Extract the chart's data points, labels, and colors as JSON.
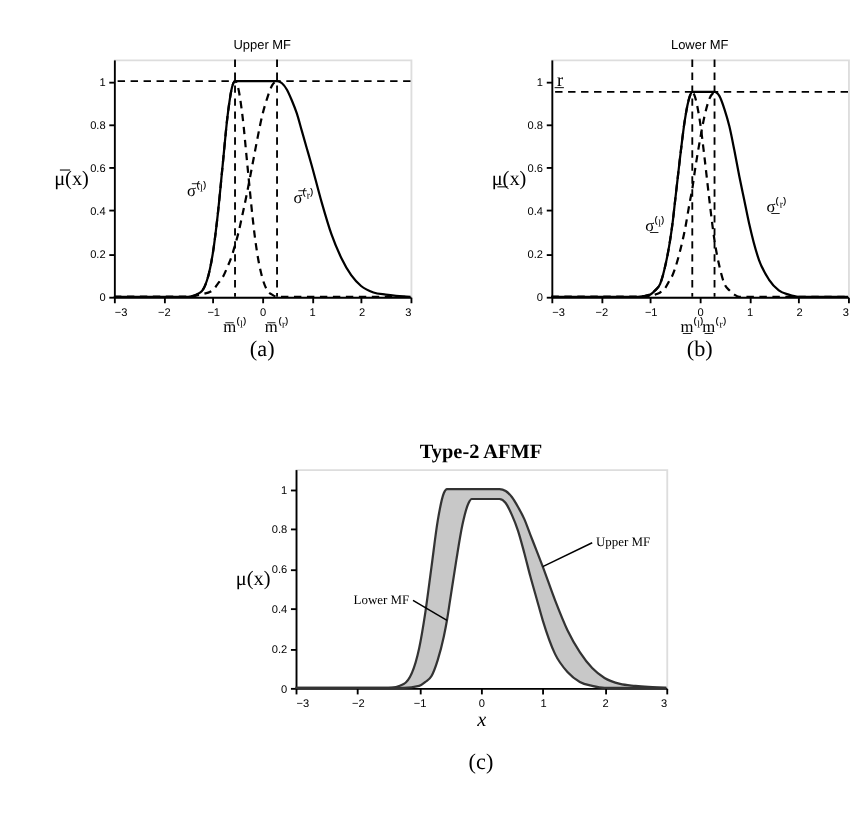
{
  "chart_data": [
    {
      "type": "line",
      "title": "Upper MF",
      "ylabel": "μ̅(x)",
      "xlim": [
        -3,
        3
      ],
      "ylim": [
        0,
        1.1
      ],
      "xticks": [
        -3,
        -2,
        -1,
        0,
        1,
        2,
        3
      ],
      "yticks": [
        0,
        0.2,
        0.4,
        0.6,
        0.8,
        1
      ],
      "grid": false,
      "x": [
        -3,
        -2.5,
        -2,
        -1.5,
        -1.25,
        -1,
        -0.9,
        -0.8,
        -0.7,
        -0.6,
        -0.55,
        -0.5,
        -0.4,
        -0.3,
        -0.2,
        -0.15,
        -0.1,
        0,
        0.1,
        0.2,
        0.3,
        0.4,
        0.5,
        0.6,
        0.7,
        0.8,
        0.9,
        1,
        1.2,
        1.4,
        1.6,
        1.8,
        2,
        2.25,
        2.5,
        3
      ],
      "series": [
        {
          "color": "#000000",
          "values": [
            0,
            0,
            0,
            0,
            0.02,
            0.2,
            0.38,
            0.61,
            0.84,
            0.98,
            1,
            1,
            1,
            1,
            1,
            1,
            1,
            1,
            1,
            1,
            1,
            0.99,
            0.96,
            0.91,
            0.85,
            0.77,
            0.69,
            0.61,
            0.44,
            0.29,
            0.18,
            0.1,
            0.05,
            0.02,
            0.01,
            0
          ]
        },
        {
          "color": "#000000",
          "line_style": "dashed",
          "values": [
            0,
            0,
            0,
            0,
            0.02,
            0.2,
            0.38,
            0.61,
            0.84,
            0.98,
            1,
            0.98,
            0.84,
            0.61,
            0.38,
            0.28,
            0.2,
            0.09,
            0.03,
            0.01,
            0,
            0,
            0,
            0,
            0,
            0,
            0,
            0,
            0,
            0,
            0,
            0,
            0,
            0,
            0,
            0
          ]
        },
        {
          "color": "#000000",
          "line_style": "dashed",
          "x": [
            -3,
            -2.5,
            -2,
            -1.5,
            -1.25,
            -1,
            -0.9,
            -0.8,
            -0.7,
            -0.6,
            -0.55,
            -0.5,
            -0.4,
            -0.3,
            -0.2,
            -0.15,
            -0.1,
            0,
            0.1,
            0.2,
            0.3
          ],
          "values": [
            0,
            0,
            0,
            0,
            0.01,
            0.03,
            0.06,
            0.09,
            0.14,
            0.2,
            0.24,
            0.28,
            0.38,
            0.49,
            0.61,
            0.67,
            0.73,
            0.84,
            0.92,
            0.98,
            1
          ]
        }
      ],
      "ref_lines": [
        {
          "axis": "x",
          "value": -0.55,
          "line_style": "dashed"
        },
        {
          "axis": "x",
          "value": 0.3,
          "line_style": "dashed"
        },
        {
          "axis": "y",
          "value": 1,
          "line_style": "dashed"
        }
      ],
      "annotations": [
        {
          "text": "m̅⁽ˡ⁾",
          "x": -0.55,
          "y": 0
        },
        {
          "text": "m̅⁽ʳ⁾",
          "x": 0.3,
          "y": 0
        },
        "σ̅⁽ˡ⁾",
        "σ̅⁽ʳ⁾",
        "(a)"
      ]
    },
    {
      "type": "line",
      "title": "Lower MF",
      "ylabel": "μ̲(x)",
      "xlim": [
        -3,
        3
      ],
      "ylim": [
        0,
        1.1
      ],
      "xticks": [
        -3,
        -2,
        -1,
        0,
        1,
        2,
        3
      ],
      "yticks": [
        0,
        0.2,
        0.4,
        0.6,
        0.8,
        1
      ],
      "grid": false,
      "x": [
        -3,
        -2.5,
        -2,
        -1.5,
        -1.25,
        -1,
        -0.9,
        -0.8,
        -0.7,
        -0.6,
        -0.55,
        -0.5,
        -0.4,
        -0.3,
        -0.2,
        -0.15,
        -0.1,
        0,
        0.1,
        0.2,
        0.3,
        0.4,
        0.5,
        0.6,
        0.7,
        0.8,
        0.9,
        1,
        1.2,
        1.4,
        1.6,
        1.8,
        2,
        2.25,
        2.5,
        3
      ],
      "series": [
        {
          "color": "#000000",
          "values": [
            0,
            0,
            0,
            0,
            0,
            0.01,
            0.03,
            0.06,
            0.14,
            0.26,
            0.34,
            0.44,
            0.64,
            0.82,
            0.93,
            0.95,
            0.95,
            0.95,
            0.95,
            0.95,
            0.95,
            0.93,
            0.87,
            0.79,
            0.68,
            0.56,
            0.45,
            0.34,
            0.17,
            0.08,
            0.03,
            0.01,
            0,
            0,
            0,
            0
          ]
        },
        {
          "color": "#000000",
          "line_style": "dashed",
          "values": [
            0,
            0,
            0,
            0,
            0,
            0.01,
            0.03,
            0.06,
            0.14,
            0.26,
            0.34,
            0.44,
            0.64,
            0.82,
            0.93,
            0.95,
            0.93,
            0.82,
            0.64,
            0.44,
            0.26,
            0.14,
            0.06,
            0.03,
            0.01,
            0,
            0,
            0,
            0,
            0,
            0,
            0,
            0,
            0,
            0,
            0
          ]
        },
        {
          "color": "#000000",
          "line_style": "dashed",
          "x": [
            -3,
            -2.5,
            -2,
            -1.5,
            -1.25,
            -1,
            -0.9,
            -0.8,
            -0.7,
            -0.6,
            -0.55,
            -0.5,
            -0.4,
            -0.3,
            -0.2,
            -0.15,
            -0.1,
            0,
            0.1,
            0.2,
            0.3
          ],
          "values": [
            0,
            0,
            0,
            0,
            0,
            0,
            0.01,
            0.02,
            0.04,
            0.08,
            0.1,
            0.13,
            0.21,
            0.31,
            0.44,
            0.5,
            0.58,
            0.72,
            0.84,
            0.92,
            0.95
          ]
        }
      ],
      "ref_lines": [
        {
          "axis": "x",
          "value": -0.15,
          "line_style": "dashed"
        },
        {
          "axis": "x",
          "value": 0.3,
          "line_style": "dashed"
        },
        {
          "axis": "y",
          "value": 0.95,
          "label": "r̲",
          "line_style": "dashed"
        }
      ],
      "annotations": [
        {
          "text": "m̲⁽ˡ⁾",
          "x": -0.15,
          "y": 0
        },
        {
          "text": "m̲⁽ʳ⁾",
          "x": 0.3,
          "y": 0
        },
        "σ̲⁽ˡ⁾",
        "σ̲⁽ʳ⁾",
        "(b)"
      ]
    },
    {
      "type": "line",
      "title": "Type-2 AFMF",
      "xlabel": "x",
      "ylabel": "μ(x)",
      "xlim": [
        -3,
        3
      ],
      "ylim": [
        0,
        1.1
      ],
      "xticks": [
        -3,
        -2,
        -1,
        0,
        1,
        2,
        3
      ],
      "yticks": [
        0,
        0.2,
        0.4,
        0.6,
        0.8,
        1
      ],
      "grid": false,
      "x": [
        -3,
        -2.5,
        -2,
        -1.5,
        -1.25,
        -1,
        -0.9,
        -0.8,
        -0.7,
        -0.6,
        -0.55,
        -0.5,
        -0.4,
        -0.3,
        -0.2,
        -0.15,
        -0.1,
        0,
        0.1,
        0.2,
        0.3,
        0.4,
        0.5,
        0.6,
        0.7,
        0.8,
        0.9,
        1,
        1.2,
        1.4,
        1.6,
        1.8,
        2,
        2.25,
        2.5,
        3
      ],
      "series": [
        {
          "color": "#333333",
          "values": [
            0,
            0,
            0,
            0,
            0.02,
            0.2,
            0.38,
            0.61,
            0.84,
            0.98,
            1,
            1,
            1,
            1,
            1,
            1,
            1,
            1,
            1,
            1,
            1,
            0.99,
            0.96,
            0.91,
            0.85,
            0.77,
            0.69,
            0.61,
            0.44,
            0.29,
            0.18,
            0.1,
            0.05,
            0.02,
            0.01,
            0
          ],
          "upper": [
            0,
            0,
            0,
            0,
            0.02,
            0.2,
            0.38,
            0.61,
            0.84,
            0.98,
            1,
            1,
            1,
            1,
            1,
            1,
            1,
            1,
            1,
            1,
            1,
            0.99,
            0.96,
            0.91,
            0.85,
            0.77,
            0.69,
            0.61,
            0.44,
            0.29,
            0.18,
            0.1,
            0.05,
            0.02,
            0.01,
            0
          ],
          "lower": [
            0,
            0,
            0,
            0,
            0,
            0.01,
            0.03,
            0.06,
            0.14,
            0.26,
            0.34,
            0.44,
            0.64,
            0.82,
            0.93,
            0.95,
            0.95,
            0.95,
            0.95,
            0.95,
            0.95,
            0.93,
            0.87,
            0.79,
            0.68,
            0.56,
            0.45,
            0.34,
            0.17,
            0.08,
            0.03,
            0.01,
            0,
            0,
            0,
            0
          ]
        },
        {
          "color": "#333333",
          "values": [
            0,
            0,
            0,
            0,
            0,
            0.01,
            0.03,
            0.06,
            0.14,
            0.26,
            0.34,
            0.44,
            0.64,
            0.82,
            0.93,
            0.95,
            0.95,
            0.95,
            0.95,
            0.95,
            0.95,
            0.93,
            0.87,
            0.79,
            0.68,
            0.56,
            0.45,
            0.34,
            0.17,
            0.08,
            0.03,
            0.01,
            0,
            0,
            0,
            0
          ]
        }
      ],
      "annotations": [
        {
          "text": "Upper MF",
          "x": 1,
          "y": 0.61
        },
        {
          "text": "Lower MF",
          "x": -0.55,
          "y": 0.34
        },
        "(c)"
      ]
    }
  ]
}
